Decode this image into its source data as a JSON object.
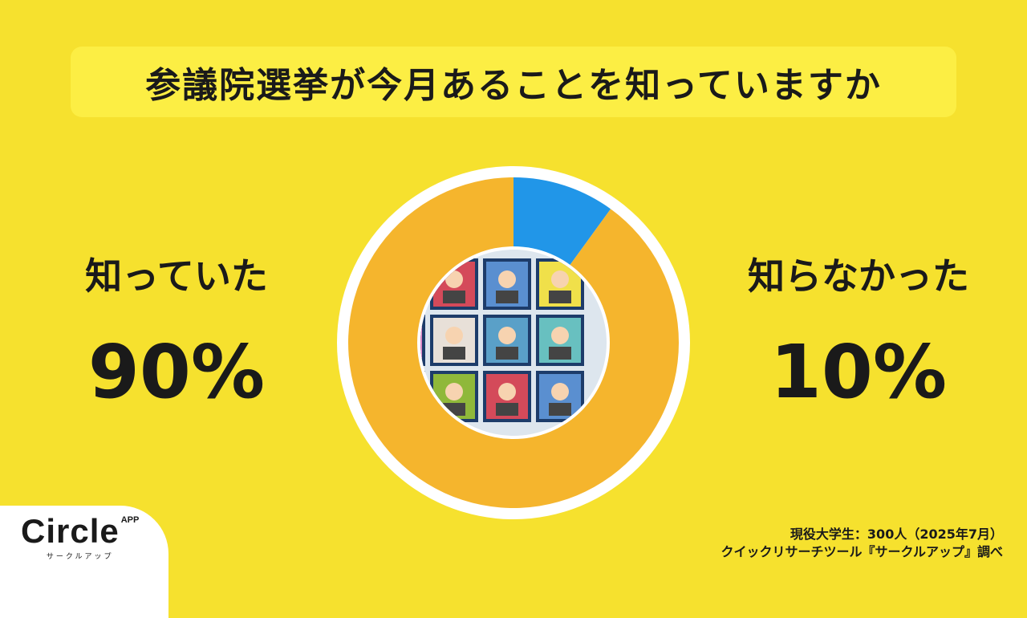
{
  "title": "参議院選挙が今月あることを知っていますか",
  "chart_data": {
    "type": "pie",
    "style": "donut",
    "categories": [
      "知っていた",
      "知らなかった"
    ],
    "values": [
      90,
      10
    ],
    "value_labels": [
      "90%",
      "10%"
    ],
    "colors": [
      "#F5B52D",
      "#2196E8"
    ],
    "start": "top, clockwise (知らなかった first)"
  },
  "logo": {
    "name": "Circle",
    "superscript": "APP",
    "subtitle": "サークルアップ"
  },
  "footer": {
    "line1": "現役大学生：300人（2025年7月）",
    "line2": "クイックリサーチツール『サークルアップ』調べ"
  }
}
